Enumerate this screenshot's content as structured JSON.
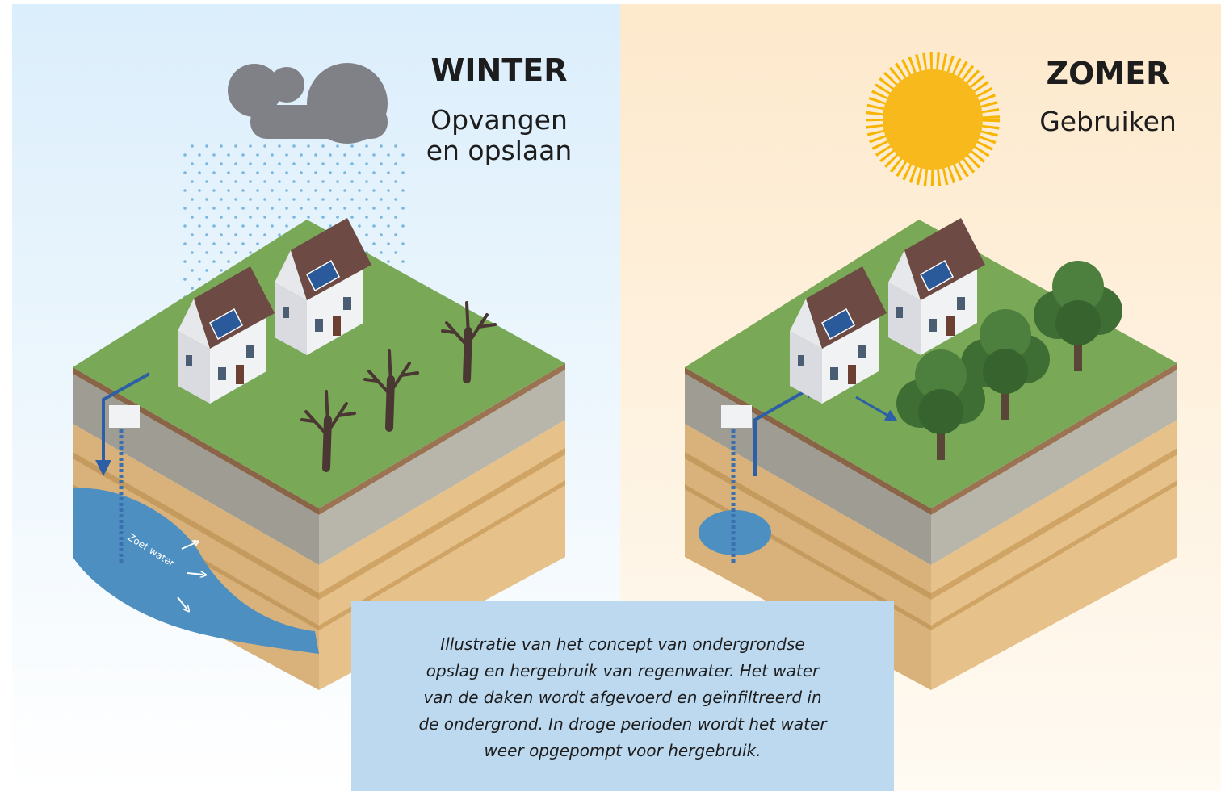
{
  "winter": {
    "title": "WINTER",
    "subtitle": [
      "Opvangen",
      "en opslaan"
    ],
    "water_label": "Zoet water"
  },
  "zomer": {
    "title": "ZOMER",
    "subtitle": "Gebruiken"
  },
  "caption": [
    "Illustratie van het concept van ondergrondse",
    "opslag en hergebruik van regenwater. Het water",
    "van de daken wordt afgevoerd en geïnfiltreerd in",
    "de ondergrond. In droge perioden wordt het water",
    "weer opgepompt voor hergebruik."
  ]
}
